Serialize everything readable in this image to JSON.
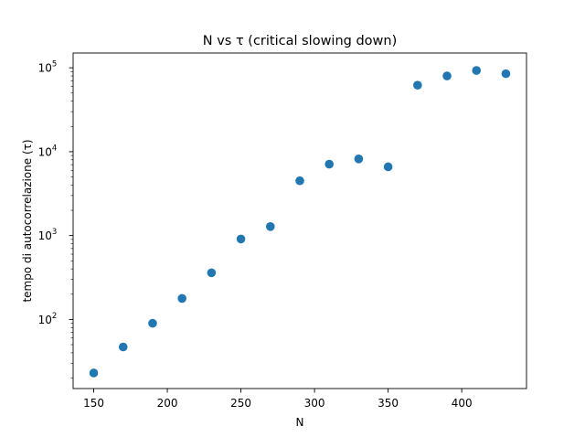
{
  "chart_data": {
    "type": "scatter",
    "title": "N vs τ (critical slowing down)",
    "xlabel": "N",
    "ylabel": "tempo di autocorrelazione (τ)",
    "x_scale": "linear",
    "y_scale": "log",
    "xlim": [
      136,
      444
    ],
    "ylim": [
      15,
      150000
    ],
    "x_ticks": [
      150,
      200,
      250,
      300,
      350,
      400
    ],
    "y_ticks": [
      {
        "value": 100,
        "base": "10",
        "exp": "2"
      },
      {
        "value": 1000,
        "base": "10",
        "exp": "3"
      },
      {
        "value": 10000,
        "base": "10",
        "exp": "4"
      },
      {
        "value": 100000,
        "base": "10",
        "exp": "5"
      }
    ],
    "grid": false,
    "color": "#1f77b4",
    "points": [
      {
        "x": 150,
        "y": 23
      },
      {
        "x": 170,
        "y": 47
      },
      {
        "x": 190,
        "y": 90
      },
      {
        "x": 210,
        "y": 178
      },
      {
        "x": 230,
        "y": 360
      },
      {
        "x": 250,
        "y": 910
      },
      {
        "x": 270,
        "y": 1280
      },
      {
        "x": 290,
        "y": 4500
      },
      {
        "x": 310,
        "y": 7100
      },
      {
        "x": 330,
        "y": 8200
      },
      {
        "x": 350,
        "y": 6600
      },
      {
        "x": 370,
        "y": 62000
      },
      {
        "x": 390,
        "y": 80000
      },
      {
        "x": 410,
        "y": 93000
      },
      {
        "x": 430,
        "y": 85000
      }
    ]
  }
}
